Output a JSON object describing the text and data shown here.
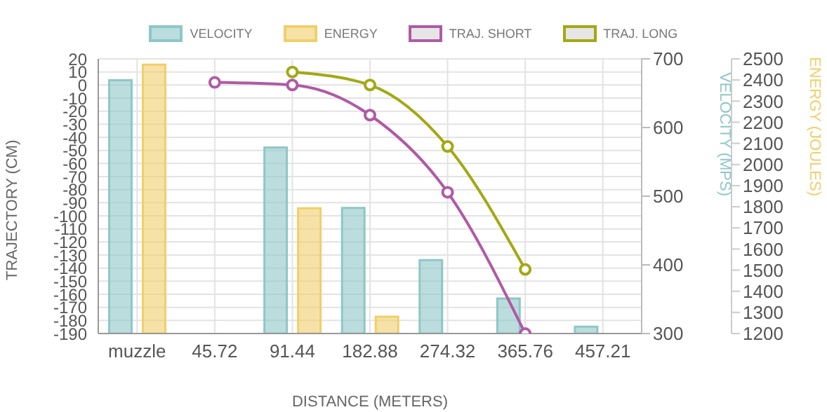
{
  "chart_data": {
    "type": "bar",
    "xlabel": "DISTANCE (METERS)",
    "ylabel": "TRAJECTORY (CM)",
    "y2label": "VELOCITY (MPS)",
    "y3label": "ENERGY (JOULES)",
    "categories": [
      "muzzle",
      "45.72",
      "91.44",
      "182.88",
      "274.32",
      "365.76",
      "457.21"
    ],
    "series": [
      {
        "name": "VELOCITY",
        "axis": "y2",
        "color": "#8ec7c8",
        "values": [
          669,
          null,
          571,
          483,
          407,
          351,
          310
        ]
      },
      {
        "name": "ENERGY",
        "axis": "y3",
        "color": "#f0cf6a",
        "values": [
          2473,
          null,
          1793,
          1280,
          null,
          null,
          null
        ]
      },
      {
        "name": "TRAJ. SHORT",
        "type": "line",
        "color": "#b05aa5",
        "values": [
          null,
          2,
          0,
          -23,
          -82,
          -190,
          null
        ]
      },
      {
        "name": "TRAJ. LONG",
        "type": "line",
        "color": "#a3a814",
        "values": [
          null,
          null,
          10,
          0,
          -47,
          -141,
          null
        ]
      }
    ],
    "ylim": [
      -190,
      20
    ],
    "yticks": [
      -190,
      -180,
      -170,
      -160,
      -150,
      -140,
      -130,
      -120,
      -110,
      -100,
      -90,
      -80,
      -70,
      -60,
      -50,
      -40,
      -30,
      -20,
      -10,
      0,
      10,
      20
    ],
    "y2lim": [
      300,
      700
    ],
    "y2ticks": [
      300,
      400,
      500,
      600,
      700
    ],
    "y3lim": [
      1200,
      2500
    ],
    "y3ticks": [
      1200,
      1300,
      1400,
      1500,
      1600,
      1700,
      1800,
      1900,
      2000,
      2100,
      2200,
      2300,
      2400,
      2500
    ],
    "grid": true,
    "legend": "top",
    "marker": "circle",
    "line_style": "solid"
  }
}
